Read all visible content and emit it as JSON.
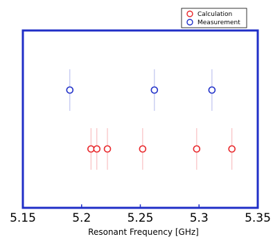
{
  "chart_data": {
    "type": "scatter",
    "title": "",
    "xlabel": "Resonant Frequency [GHz]",
    "ylabel": "",
    "xlim": [
      5.15,
      5.35
    ],
    "x_ticks": [
      5.15,
      5.2,
      5.25,
      5.3,
      5.35
    ],
    "x_tick_labels": [
      "5.15",
      "5.2",
      "5.25",
      "5.3",
      "5.35"
    ],
    "grid": false,
    "legend_position": "top-right",
    "series": [
      {
        "name": "Calculation",
        "color": "#e8262a",
        "x": [
          5.208,
          5.213,
          5.222,
          5.252,
          5.298,
          5.328
        ],
        "xerr": 0,
        "marker": "open-circle",
        "errorbars": "vertical"
      },
      {
        "name": "Measurement",
        "color": "#2030c8",
        "x": [
          5.19,
          5.262,
          5.311
        ],
        "xerr": 0,
        "marker": "open-circle",
        "errorbars": "vertical"
      }
    ],
    "frame_color": "#1f2ec7"
  }
}
